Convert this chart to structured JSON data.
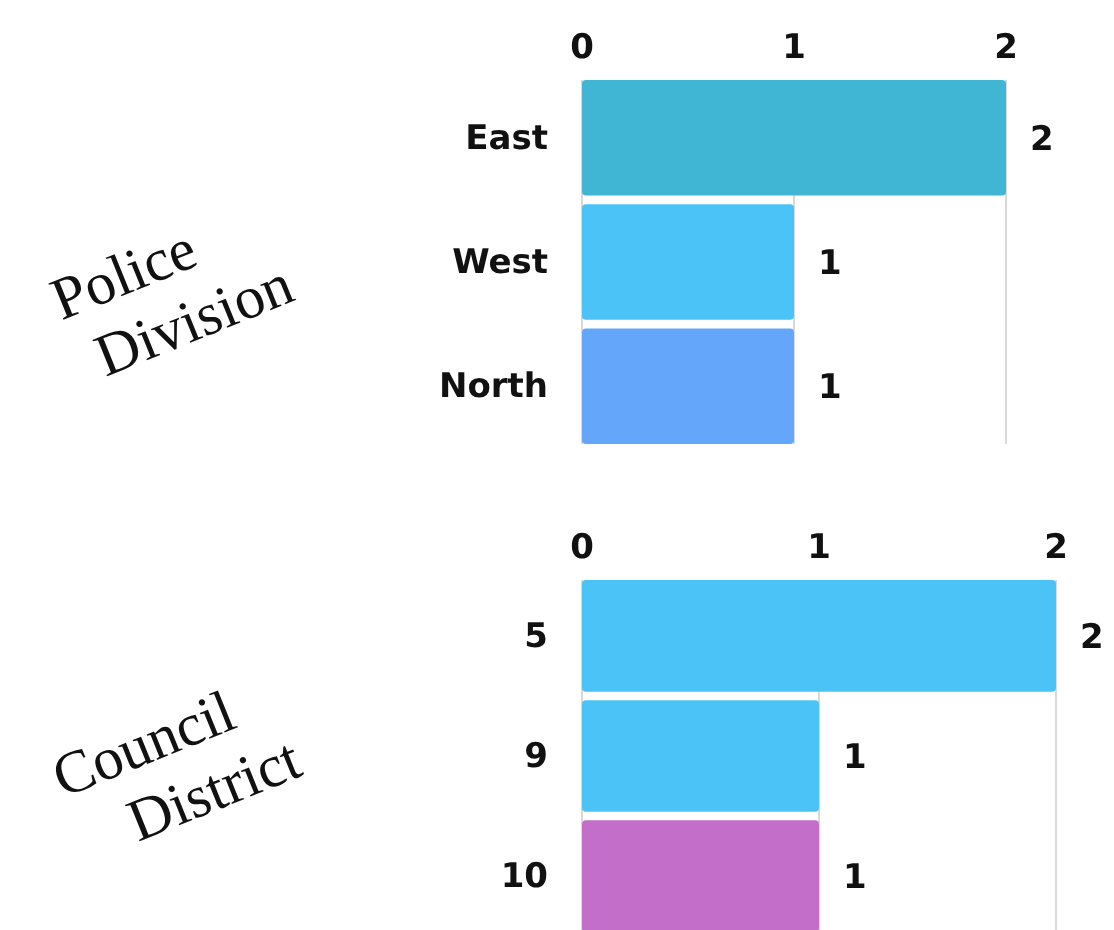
{
  "chart_data": [
    {
      "type": "bar",
      "title": "Police Division",
      "orientation": "horizontal",
      "categories": [
        "East",
        "West",
        "North"
      ],
      "values": [
        2,
        1,
        1
      ],
      "colors": [
        "#41b6d4",
        "#4cc3f7",
        "#64a6f9"
      ],
      "xlim": [
        0,
        2
      ],
      "xticks": [
        0,
        1,
        2
      ],
      "grid": "x",
      "data_labels": true
    },
    {
      "type": "bar",
      "title": "Council District",
      "orientation": "horizontal",
      "categories": [
        "5",
        "9",
        "10"
      ],
      "values": [
        2,
        1,
        1
      ],
      "colors": [
        "#4cc3f7",
        "#4cc3f7",
        "#c36fc9"
      ],
      "xlim": [
        0,
        2
      ],
      "xticks": [
        0,
        1,
        2
      ],
      "grid": "x",
      "data_labels": true
    }
  ]
}
